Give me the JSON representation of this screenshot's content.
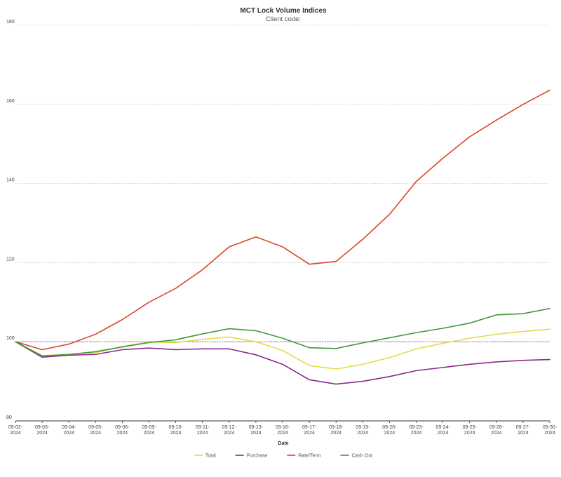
{
  "chart_data": {
    "type": "line",
    "title": "MCT Lock Volume Indices",
    "subtitle": "Client code:",
    "xlabel": "Date",
    "ylabel": "",
    "ylim": [
      80,
      180
    ],
    "yticks": [
      80,
      100,
      120,
      140,
      160,
      180
    ],
    "reference_line": 100,
    "grid": true,
    "legend_position": "bottom-center",
    "x": [
      [
        "09-02-",
        "2024"
      ],
      [
        "09-03-",
        "2024"
      ],
      [
        "09-04-",
        "2024"
      ],
      [
        "09-05-",
        "2024"
      ],
      [
        "09-06-",
        "2024"
      ],
      [
        "09-09-",
        "2024"
      ],
      [
        "09-10-",
        "2024"
      ],
      [
        "09-11-",
        "2024"
      ],
      [
        "09-12-",
        "2024"
      ],
      [
        "09-13-",
        "2024"
      ],
      [
        "09-16-",
        "2024"
      ],
      [
        "09-17-",
        "2024"
      ],
      [
        "09-18-",
        "2024"
      ],
      [
        "09-19-",
        "2024"
      ],
      [
        "09-20-",
        "2024"
      ],
      [
        "09-23-",
        "2024"
      ],
      [
        "09-24-",
        "2024"
      ],
      [
        "09-25-",
        "2024"
      ],
      [
        "09-26-",
        "2024"
      ],
      [
        "09-27-",
        "2024"
      ],
      [
        "09-30-",
        "2024"
      ]
    ],
    "series": [
      {
        "name": "Total",
        "color": "#e3dc45",
        "values": [
          100,
          96.5,
          96.8,
          97.2,
          98.8,
          99.9,
          99.8,
          100.6,
          101.2,
          100.0,
          97.8,
          94.0,
          93.1,
          94.3,
          96.0,
          98.2,
          99.6,
          100.9,
          101.9,
          102.6,
          103.2
        ]
      },
      {
        "name": "Purchase",
        "color": "#8b2a8c",
        "values": [
          100,
          96.1,
          96.6,
          96.8,
          98.0,
          98.4,
          98.0,
          98.2,
          98.2,
          96.7,
          94.3,
          90.4,
          89.3,
          90.0,
          91.2,
          92.7,
          93.5,
          94.3,
          94.9,
          95.3,
          95.5
        ]
      },
      {
        "name": "Rate/Term",
        "color": "#d9472b",
        "values": [
          100,
          98.0,
          99.4,
          101.9,
          105.6,
          110.0,
          113.5,
          118.2,
          124.0,
          126.5,
          124.0,
          119.6,
          120.3,
          125.9,
          132.2,
          140.5,
          146.4,
          151.8,
          156.0,
          160.0,
          163.6
        ]
      },
      {
        "name": "Cash Out",
        "color": "#3e9a3e",
        "values": [
          100,
          96.4,
          96.8,
          97.5,
          98.7,
          99.8,
          100.5,
          102.0,
          103.3,
          102.8,
          100.9,
          98.5,
          98.3,
          99.7,
          101.0,
          102.3,
          103.4,
          104.7,
          106.8,
          107.1,
          108.4
        ]
      }
    ]
  }
}
